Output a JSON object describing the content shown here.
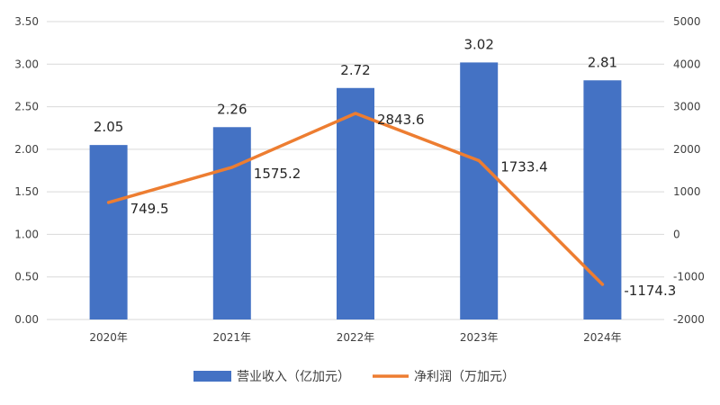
{
  "chart_data": {
    "type": "bar",
    "categories": [
      "2020年",
      "2021年",
      "2022年",
      "2023年",
      "2024年"
    ],
    "series": [
      {
        "name": "营业收入（亿加元）",
        "type": "bar",
        "axis": "left",
        "color": "#4472C4",
        "values": [
          2.05,
          2.26,
          2.72,
          3.02,
          2.81
        ],
        "labels": [
          "2.05",
          "2.26",
          "2.72",
          "3.02",
          "2.81"
        ]
      },
      {
        "name": "净利润（万加元）",
        "type": "line",
        "axis": "right",
        "color": "#ED7D31",
        "values": [
          749.5,
          1575.2,
          2843.6,
          1733.4,
          -1174.3
        ],
        "labels": [
          "749.5",
          "1575.2",
          "2843.6",
          "1733.4",
          "-1174.3"
        ]
      }
    ],
    "y_left": {
      "ylim": [
        0,
        3.5
      ],
      "ticks": [
        "0.00",
        "0.50",
        "1.00",
        "1.50",
        "2.00",
        "2.50",
        "3.00",
        "3.50"
      ]
    },
    "y_right": {
      "ylim": [
        -2000,
        5000
      ],
      "ticks": [
        "-2000",
        "-1000",
        "0",
        "1000",
        "2000",
        "3000",
        "4000",
        "5000"
      ]
    },
    "grid": true,
    "legend_position": "bottom"
  }
}
